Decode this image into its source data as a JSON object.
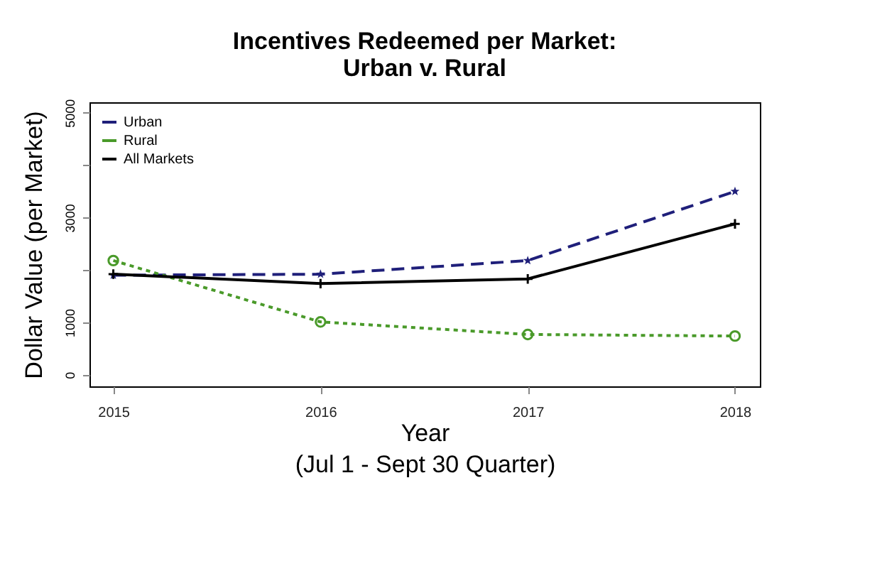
{
  "chart_data": {
    "type": "line",
    "title": "Incentives Redeemed per Market:\nUrban v. Rural",
    "xlabel": "Year",
    "ylabel": "Dollar Value (per Market)",
    "annotations": [
      "(Jul 1 - Sept 30 Quarter)"
    ],
    "x": [
      2015,
      2016,
      2017,
      2018
    ],
    "xlim": [
      2014.885,
      2018.12
    ],
    "xticks": [
      2015,
      2016,
      2017,
      2018
    ],
    "ylim": [
      -220,
      5200
    ],
    "yticks": [
      0,
      1000,
      {
        "value": 2000,
        "label": null
      },
      3000,
      {
        "value": 4000,
        "label": null
      },
      5000
    ],
    "series": [
      {
        "name": "Urban",
        "color": "#1f1f7a",
        "values": [
          1900,
          1920,
          2180,
          3500
        ],
        "line_style": "dashed",
        "marker": "star"
      },
      {
        "name": "Rural",
        "color": "#4a9a2a",
        "values": [
          2180,
          1010,
          770,
          740
        ],
        "line_style": "dotted",
        "marker": "circle"
      },
      {
        "name": "All Markets",
        "color": "#000000",
        "values": [
          1920,
          1740,
          1830,
          2880
        ],
        "line_style": "solid",
        "marker": "cross"
      }
    ],
    "grid": false,
    "legend": "top left"
  }
}
